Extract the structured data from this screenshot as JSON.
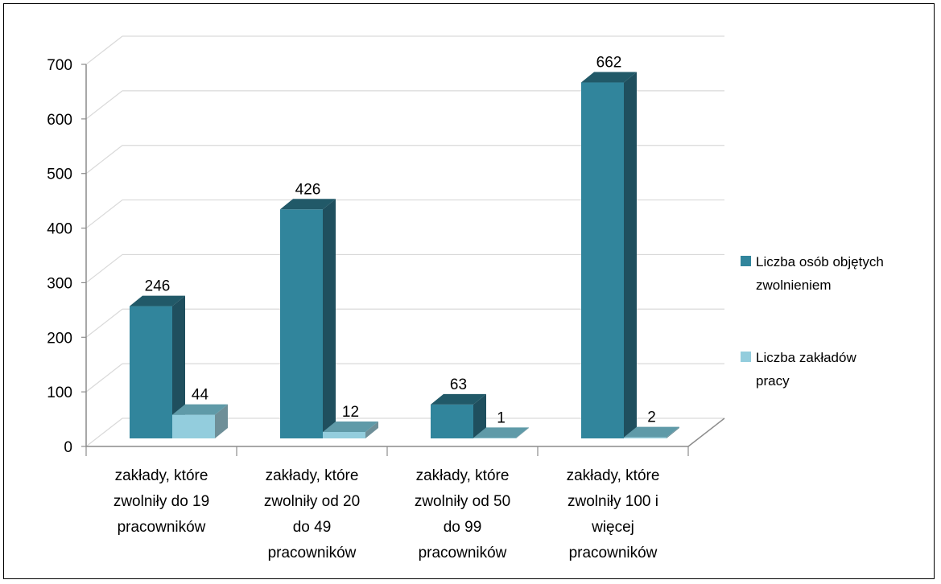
{
  "chart_data": {
    "type": "bar",
    "categories": [
      [
        "zakłady, które",
        "zwolniły do 19",
        "pracowników"
      ],
      [
        "zakłady, które",
        "zwolniły od 20",
        "do 49",
        "pracowników"
      ],
      [
        "zakłady, które",
        "zwolniły od 50",
        "do 99",
        "pracowników"
      ],
      [
        "zakłady, które",
        "zwolniły 100 i",
        "więcej",
        "pracowników"
      ]
    ],
    "series": [
      {
        "name": [
          "Liczba osób objętych",
          "zwolnieniem"
        ],
        "values": [
          246,
          426,
          63,
          662
        ],
        "color": "#31859c",
        "top_color": "#215968",
        "side_color": "#1f4f5e"
      },
      {
        "name": [
          "Liczba zakładów",
          "pracy"
        ],
        "values": [
          44,
          12,
          1,
          2
        ],
        "color": "#93cddd",
        "top_color": "#5f9aa8",
        "side_color": "#6e8f98"
      }
    ],
    "yticks": [
      "0",
      "100",
      "200",
      "300",
      "400",
      "500",
      "600",
      "700"
    ],
    "ylim": [
      0,
      700
    ],
    "grid": true,
    "legend_position": "right",
    "three_d": true
  }
}
